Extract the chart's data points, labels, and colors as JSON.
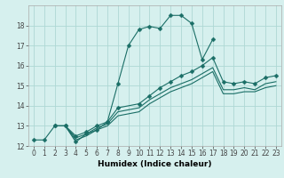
{
  "title": "",
  "xlabel": "Humidex (Indice chaleur)",
  "xlim": [
    -0.5,
    23.5
  ],
  "ylim": [
    12,
    19
  ],
  "background_color": "#d6f0ee",
  "grid_color": "#aed8d4",
  "line_color": "#1a6e66",
  "lines": [
    {
      "x": [
        0,
        1,
        2,
        3,
        4,
        5,
        6,
        7,
        8,
        9,
        10,
        11,
        12,
        13,
        14,
        15,
        16,
        17
      ],
      "y": [
        12.3,
        12.3,
        13.0,
        13.0,
        12.2,
        12.6,
        12.8,
        13.2,
        15.1,
        17.0,
        17.8,
        17.95,
        17.85,
        18.5,
        18.5,
        18.1,
        16.3,
        17.3
      ],
      "marker": "D",
      "markersize": 2.5,
      "with_markers": true
    },
    {
      "x": [
        2,
        3,
        4,
        5,
        6,
        7,
        8,
        10,
        11,
        12,
        13,
        14,
        15,
        16,
        17,
        18,
        19,
        20,
        21,
        22,
        23
      ],
      "y": [
        13.0,
        13.0,
        12.5,
        12.7,
        13.0,
        13.2,
        13.9,
        14.1,
        14.5,
        14.9,
        15.2,
        15.5,
        15.7,
        16.0,
        16.4,
        15.2,
        15.1,
        15.2,
        15.1,
        15.4,
        15.5
      ],
      "marker": "D",
      "markersize": 2.5,
      "with_markers": true
    },
    {
      "x": [
        2,
        3,
        4,
        5,
        6,
        7,
        8,
        10,
        11,
        12,
        13,
        14,
        15,
        16,
        17,
        18,
        19,
        20,
        21,
        22,
        23
      ],
      "y": [
        13.0,
        13.0,
        12.4,
        12.6,
        12.9,
        13.1,
        13.7,
        13.9,
        14.3,
        14.6,
        14.9,
        15.1,
        15.3,
        15.6,
        15.9,
        14.8,
        14.8,
        14.9,
        14.8,
        15.1,
        15.2
      ],
      "marker": null,
      "markersize": 0,
      "with_markers": false
    },
    {
      "x": [
        2,
        3,
        4,
        5,
        6,
        7,
        8,
        10,
        11,
        12,
        13,
        14,
        15,
        16,
        17,
        18,
        19,
        20,
        21,
        22,
        23
      ],
      "y": [
        13.0,
        13.0,
        12.3,
        12.5,
        12.8,
        13.0,
        13.5,
        13.7,
        14.1,
        14.4,
        14.7,
        14.9,
        15.1,
        15.4,
        15.7,
        14.6,
        14.6,
        14.7,
        14.7,
        14.9,
        15.0
      ],
      "marker": null,
      "markersize": 0,
      "with_markers": false
    }
  ],
  "yticks": [
    12,
    13,
    14,
    15,
    16,
    17,
    18
  ],
  "xticks": [
    0,
    1,
    2,
    3,
    4,
    5,
    6,
    7,
    8,
    9,
    10,
    11,
    12,
    13,
    14,
    15,
    16,
    17,
    18,
    19,
    20,
    21,
    22,
    23
  ],
  "tick_fontsize": 5.5,
  "label_fontsize": 6.5
}
